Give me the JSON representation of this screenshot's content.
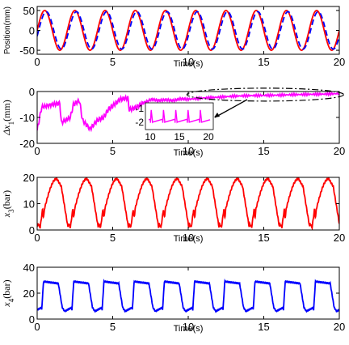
{
  "chart_data": [
    {
      "type": "line",
      "xlabel": "Time(s)",
      "ylabel": "Position(mm)",
      "xlim": [
        0,
        20
      ],
      "ylim": [
        -60,
        60
      ],
      "xticks": [
        0,
        5,
        10,
        15,
        20
      ],
      "yticks": [
        -50,
        0,
        50
      ],
      "series": [
        {
          "color": "#ff0000",
          "style": "solid",
          "kind": "sine",
          "amplitude": 50,
          "period": 2.0,
          "phase": 0.0
        },
        {
          "color": "#0000ff",
          "style": "dashed",
          "kind": "sine",
          "amplitude": 47,
          "period": 2.0,
          "phase": -0.1
        }
      ]
    },
    {
      "type": "line",
      "xlabel": "Time(s)",
      "ylabel_sym": "Δx",
      "ylabel_sub": "1",
      "ylabel_unit": "(mm)",
      "xlim": [
        0,
        20
      ],
      "ylim": [
        -20,
        0
      ],
      "xticks": [
        0,
        5,
        10,
        15,
        20
      ],
      "yticks": [
        -20,
        -10,
        0
      ],
      "series": [
        {
          "color": "#ff00ff",
          "kind": "error",
          "points": [
            [
              0,
              -15
            ],
            [
              0.3,
              -6
            ],
            [
              1.0,
              -5
            ],
            [
              1.5,
              -4.5
            ],
            [
              1.6,
              -12
            ],
            [
              2.2,
              -10
            ],
            [
              2.4,
              -5
            ],
            [
              2.8,
              -3.5
            ],
            [
              3.0,
              -11
            ],
            [
              3.5,
              -14.5
            ],
            [
              4.0,
              -11
            ],
            [
              4.4,
              -10
            ],
            [
              4.7,
              -7
            ],
            [
              5.0,
              -5.5
            ],
            [
              5.5,
              -3
            ],
            [
              6.0,
              -2.5
            ],
            [
              6.1,
              -7
            ],
            [
              6.6,
              -6
            ],
            [
              7.0,
              -4.5
            ],
            [
              7.6,
              -3
            ],
            [
              8.0,
              -3.5
            ],
            [
              8.5,
              -3.2
            ],
            [
              9.0,
              -3.5
            ],
            [
              9.5,
              -2.8
            ],
            [
              10.0,
              -3
            ],
            [
              11.0,
              -2.5
            ],
            [
              12.0,
              -2.2
            ],
            [
              13.0,
              -1.8
            ],
            [
              14.0,
              -1.6
            ],
            [
              15.0,
              -1.5
            ],
            [
              16.0,
              -1.4
            ],
            [
              17.0,
              -1.2
            ],
            [
              18.0,
              -1.1
            ],
            [
              19.0,
              -1.0
            ],
            [
              20.0,
              -0.8
            ]
          ]
        }
      ],
      "inset": {
        "xticks": [
          10,
          15,
          20
        ],
        "yticks": [
          -1,
          -2
        ]
      }
    },
    {
      "type": "line",
      "xlabel": "Time(s)",
      "ylabel_sym": "x",
      "ylabel_sub": "3",
      "ylabel_unit": "(bar)",
      "xlim": [
        0,
        20
      ],
      "ylim": [
        0,
        20
      ],
      "xticks": [
        0,
        5,
        10,
        15,
        20
      ],
      "yticks": [
        0,
        10,
        20
      ],
      "series": [
        {
          "color": "#ff0000",
          "kind": "pressure",
          "period": 2.0,
          "low": 1,
          "mid": 8,
          "high": 19.5
        }
      ]
    },
    {
      "type": "line",
      "xlabel": "Time(s)",
      "ylabel_sym": "x",
      "ylabel_sub": "4",
      "ylabel_unit": "(bar)",
      "xlim": [
        0,
        20
      ],
      "ylim": [
        0,
        40
      ],
      "xticks": [
        0,
        5,
        10,
        15,
        20
      ],
      "yticks": [
        0,
        20,
        40
      ],
      "series": [
        {
          "color": "#0000ff",
          "kind": "pressure4",
          "period": 2.0,
          "low": 7,
          "high": 29
        }
      ]
    }
  ]
}
